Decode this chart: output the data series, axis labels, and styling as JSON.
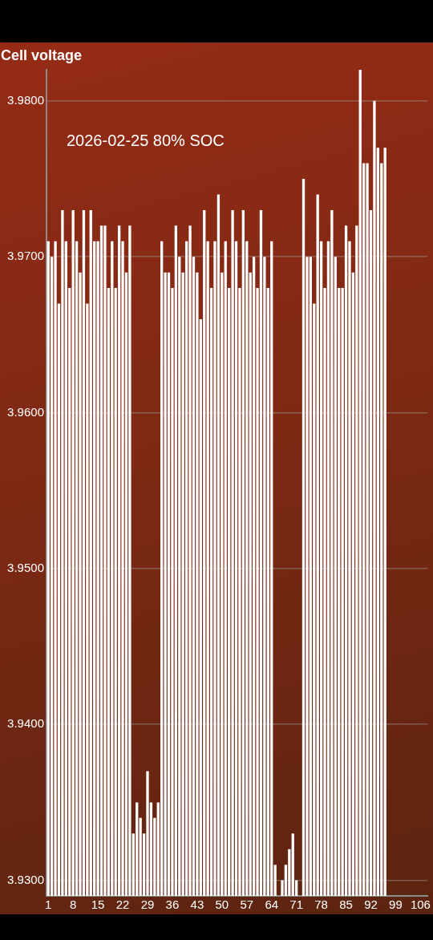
{
  "chart_data": {
    "type": "bar",
    "title": "Cell voltage",
    "annotations": [
      "2026-02-25 80% SOC"
    ],
    "x": [
      1,
      2,
      3,
      4,
      5,
      6,
      7,
      8,
      9,
      10,
      11,
      12,
      13,
      14,
      15,
      16,
      17,
      18,
      19,
      20,
      21,
      22,
      23,
      24,
      25,
      26,
      27,
      28,
      29,
      30,
      31,
      32,
      33,
      34,
      35,
      36,
      37,
      38,
      39,
      40,
      41,
      42,
      43,
      44,
      45,
      46,
      47,
      48,
      49,
      50,
      51,
      52,
      53,
      54,
      55,
      56,
      57,
      58,
      59,
      60,
      61,
      62,
      63,
      64,
      65,
      66,
      67,
      68,
      69,
      70,
      71,
      72,
      73,
      74,
      75,
      76,
      77,
      78,
      79,
      80,
      81,
      82,
      83,
      84,
      85,
      86,
      87,
      88,
      89,
      90,
      91,
      92,
      93,
      94,
      95,
      96
    ],
    "values": [
      3.971,
      3.97,
      3.971,
      3.967,
      3.973,
      3.971,
      3.968,
      3.973,
      3.971,
      3.969,
      3.973,
      3.967,
      3.973,
      3.971,
      3.971,
      3.972,
      3.972,
      3.968,
      3.971,
      3.968,
      3.972,
      3.971,
      3.969,
      3.972,
      3.933,
      3.935,
      3.934,
      3.933,
      3.937,
      3.935,
      3.934,
      3.935,
      3.971,
      3.969,
      3.969,
      3.968,
      3.972,
      3.97,
      3.969,
      3.971,
      3.972,
      3.97,
      3.969,
      3.966,
      3.973,
      3.971,
      3.968,
      3.971,
      3.974,
      3.969,
      3.971,
      3.968,
      3.973,
      3.971,
      3.968,
      3.973,
      3.971,
      3.969,
      3.97,
      3.968,
      3.973,
      3.97,
      3.968,
      3.971,
      3.931,
      null,
      3.93,
      3.931,
      3.932,
      3.933,
      3.93,
      null,
      3.975,
      3.97,
      3.97,
      3.967,
      3.974,
      3.971,
      3.968,
      3.971,
      3.973,
      3.97,
      3.968,
      3.968,
      3.972,
      3.971,
      3.969,
      3.972,
      3.982,
      3.976,
      3.976,
      3.973,
      3.98,
      3.977,
      3.976,
      3.977
    ],
    "color": "#ffffff",
    "xlim": [
      0.5,
      108
    ],
    "xticks": [
      1,
      8,
      15,
      22,
      29,
      36,
      43,
      50,
      57,
      64,
      71,
      78,
      85,
      92,
      99,
      106
    ],
    "ylim": [
      3.929,
      3.982
    ],
    "yticks": [
      {
        "value": 3.93,
        "label": "3.9300"
      },
      {
        "value": 3.94,
        "label": "3.9400"
      },
      {
        "value": 3.95,
        "label": "3.9500"
      },
      {
        "value": 3.96,
        "label": "3.9600"
      },
      {
        "value": 3.97,
        "label": "3.9700"
      },
      {
        "value": 3.98,
        "label": "3.9800"
      }
    ],
    "grid": "y"
  }
}
